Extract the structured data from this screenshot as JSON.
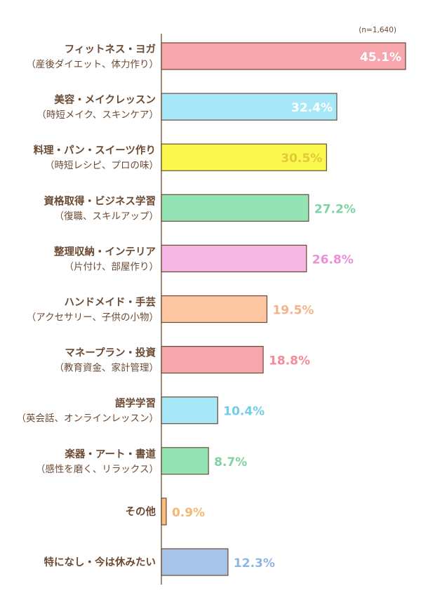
{
  "chart_data": {
    "type": "bar",
    "orientation": "horizontal",
    "note": "(n=1,640)",
    "xlim": [
      0,
      45.1
    ],
    "grid": false,
    "categories": [
      {
        "label": "フィットネス・ヨガ",
        "sub": "（産後ダイエット、体力作り）",
        "value": 45.1,
        "display": "45.1%",
        "color": "#f7a6ad",
        "label_color": "#ffffff",
        "label_inside": true
      },
      {
        "label": "美容・メイクレッスン",
        "sub": "（時短メイク、スキンケア）",
        "value": 32.4,
        "display": "32.4%",
        "color": "#a7e8f8",
        "label_color": "#ffffff",
        "label_inside": true
      },
      {
        "label": "料理・パン・スイーツ作り",
        "sub": "（時短レシピ、プロの味）",
        "value": 30.5,
        "display": "30.5%",
        "color": "#fcf94e",
        "label_color": "#e3c93a",
        "label_inside": true
      },
      {
        "label": "資格取得・ビジネス学習",
        "sub": "（復職、スキルアップ）",
        "value": 27.2,
        "display": "27.2%",
        "color": "#93e3b5",
        "label_color": "#7ed3a3",
        "label_inside": false
      },
      {
        "label": "整理収納・インテリア",
        "sub": "（片付け、部屋作り）",
        "value": 26.8,
        "display": "26.8%",
        "color": "#f4b6e3",
        "label_color": "#ee8fd6",
        "label_inside": false
      },
      {
        "label": "ハンドメイド・手芸",
        "sub": "（アクセサリー、子供の小物）",
        "value": 19.5,
        "display": "19.5%",
        "color": "#fcc7a2",
        "label_color": "#f4b18a",
        "label_inside": false
      },
      {
        "label": "マネープラン・投資",
        "sub": "（教育資金、家計管理）",
        "value": 18.8,
        "display": "18.8%",
        "color": "#f7a6ad",
        "label_color": "#f58b98",
        "label_inside": false
      },
      {
        "label": "語学学習",
        "sub": "（英会話、オンラインレッスン）",
        "value": 10.4,
        "display": "10.4%",
        "color": "#a7e8f8",
        "label_color": "#72cde8",
        "label_inside": false
      },
      {
        "label": "楽器・アート・書道",
        "sub": "（感性を磨く、リラックス）",
        "value": 8.7,
        "display": "8.7%",
        "color": "#93e3b5",
        "label_color": "#7ed3a3",
        "label_inside": false
      },
      {
        "label": "その他",
        "sub": "",
        "value": 0.9,
        "display": "0.9%",
        "color": "#fcc07e",
        "label_color": "#f5b873",
        "label_inside": false
      },
      {
        "label": "特になし・今は休みたい",
        "sub": "",
        "value": 12.3,
        "display": "12.3%",
        "color": "#a6c4e8",
        "label_color": "#8fb5e3",
        "label_inside": false
      }
    ],
    "axis_color": "#6b4a33",
    "bar_stroke": "#6b4a33"
  }
}
